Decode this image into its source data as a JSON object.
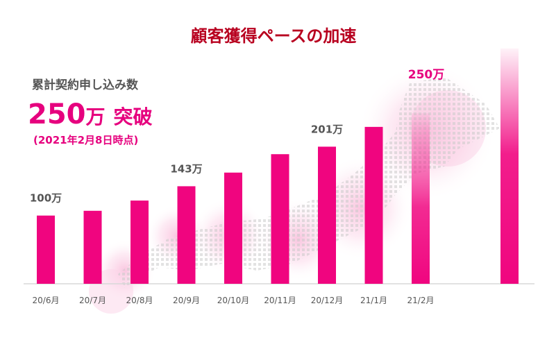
{
  "chart_data": {
    "type": "bar",
    "title": "顧客獲得ペースの加速",
    "categories": [
      "20/6月",
      "20/7月",
      "20/8月",
      "20/9月",
      "20/10月",
      "20/11月",
      "20/12月",
      "21/1月",
      "21/2月",
      ""
    ],
    "values": [
      100,
      107,
      122,
      143,
      163,
      190,
      201,
      230,
      250,
      345
    ],
    "ylim": [
      0,
      355
    ],
    "data_labels": [
      {
        "index": 0,
        "text": "100万"
      },
      {
        "index": 3,
        "text": "143万"
      },
      {
        "index": 6,
        "text": "201万"
      },
      {
        "index": 8,
        "text": "250万"
      }
    ],
    "grid": false
  },
  "headline": {
    "caption": "累計契約申し込み数",
    "big_number": "250",
    "big_unit": "万",
    "big_word": "突破",
    "date_note": "(2021年2月8日時点)"
  },
  "colors": {
    "title": "#b8001f",
    "accent": "#e6007e",
    "bar": "#f0057f",
    "label_gray": "#555555",
    "axis": "#d8d8d8"
  }
}
